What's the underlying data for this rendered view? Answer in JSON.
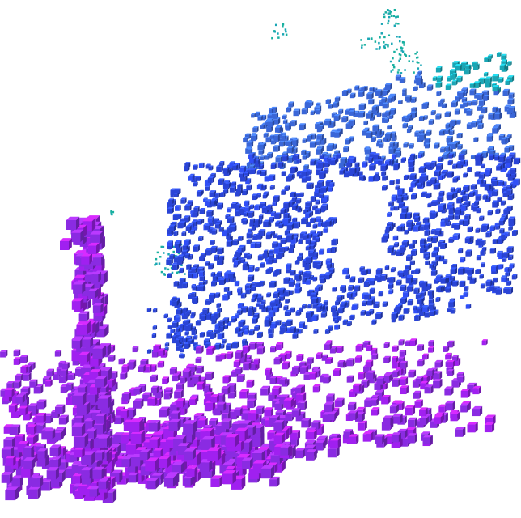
{
  "scene": {
    "kind": "voxel point cloud render",
    "background": "#ffffff",
    "palette": {
      "ground_voxels": "#8a2be2",
      "ground_voxels_bright": "#a020f0",
      "wall_voxels": "#2a44d6",
      "upper_wall_voxels": "#3a66d8",
      "top_edge_voxels": "#1aa6b5",
      "stray_points": "#18b0a0"
    },
    "regions": [
      "ground-plane",
      "left-pillar",
      "back-wall",
      "window-opening",
      "upper-wall",
      "stray-points"
    ]
  }
}
